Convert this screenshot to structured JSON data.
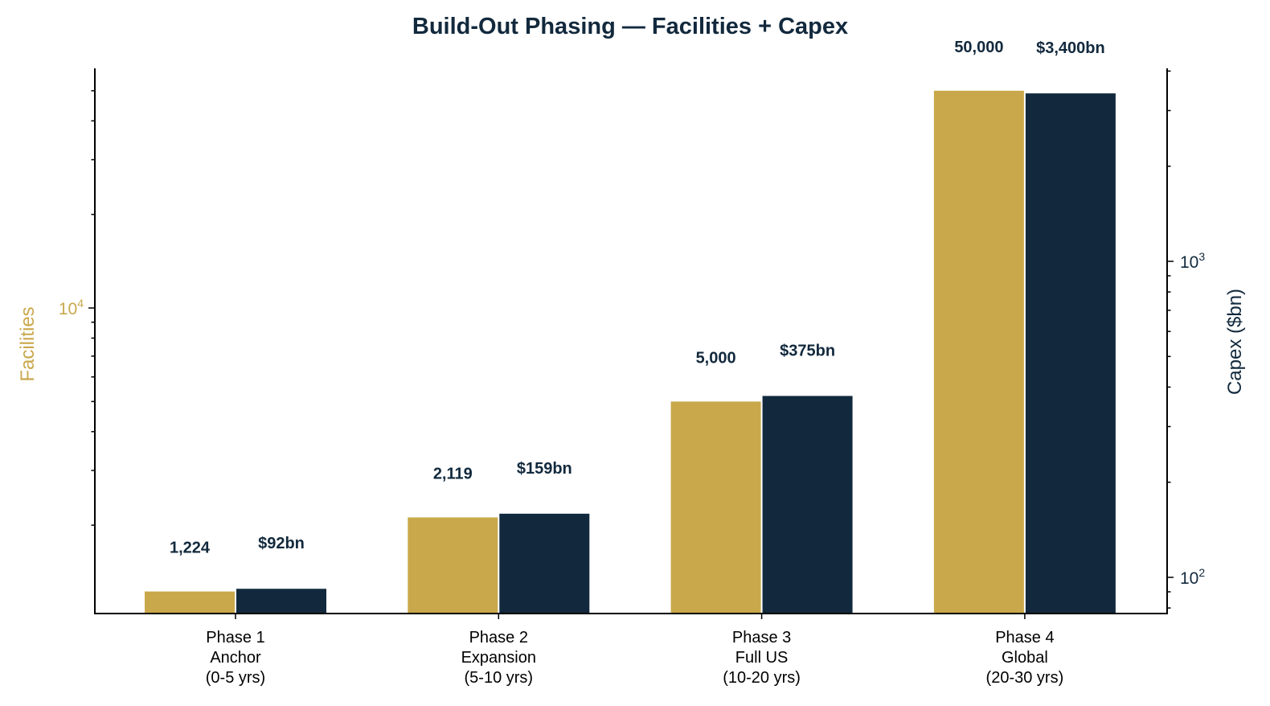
{
  "chart_data": {
    "type": "bar",
    "title": "Build-Out Phasing — Facilities + Capex",
    "categories": [
      [
        "Phase 1",
        "Anchor",
        "(0-5 yrs)"
      ],
      [
        "Phase 2",
        "Expansion",
        "(5-10 yrs)"
      ],
      [
        "Phase 3",
        "Full US",
        "(10-20 yrs)"
      ],
      [
        "Phase 4",
        "Global",
        "(20-30 yrs)"
      ]
    ],
    "series": [
      {
        "axis": "left",
        "color": "#c9a84b",
        "values": [
          1224,
          2119,
          5000,
          50000
        ],
        "labels": [
          "1,224",
          "2,119",
          "5,000",
          "50,000"
        ]
      },
      {
        "axis": "right",
        "color": "#12293d",
        "values": [
          92,
          159,
          375,
          3400
        ],
        "labels": [
          "$92bn",
          "$159bn",
          "$375bn",
          "$3,400bn"
        ]
      }
    ],
    "y_left": {
      "label": "Facilities",
      "scale": "log",
      "ticks": [
        10000
      ],
      "tick_labels": [
        "10^4"
      ]
    },
    "y_right": {
      "label": "Capex ($bn)",
      "scale": "log",
      "ticks": [
        100,
        1000
      ],
      "tick_labels": [
        "10^2",
        "10^3"
      ]
    },
    "xlabel": "",
    "grid": false,
    "legend": "none"
  }
}
